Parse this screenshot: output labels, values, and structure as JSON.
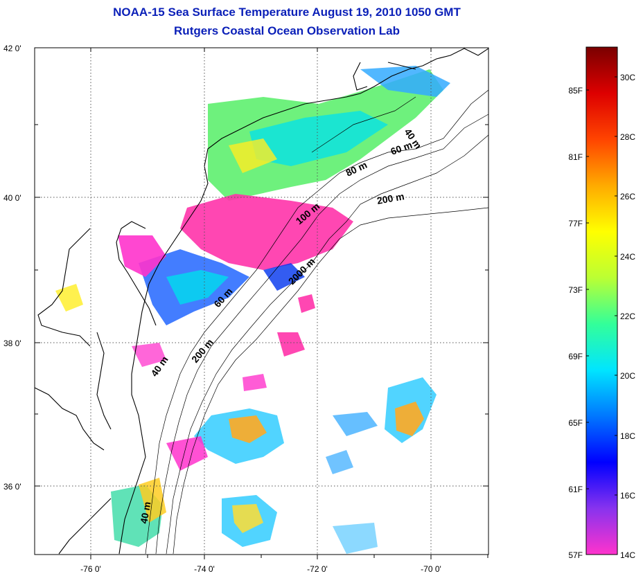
{
  "title": {
    "line1": "NOAA-15 Sea Surface Temperature August 19, 2010 1050 GMT",
    "line2": "Rutgers Coastal Ocean Observation Lab"
  },
  "map": {
    "lat_labels": [
      "42 0'",
      "40 0'",
      "38 0'",
      "36 0'"
    ],
    "lon_labels": [
      "-76 0'",
      "-74 0'",
      "-72 0'",
      "-70 0'"
    ],
    "lat_values": [
      42,
      40,
      38,
      36
    ],
    "lon_values": [
      -76,
      -74,
      -72,
      -70
    ],
    "extent": {
      "lon_min": -77,
      "lon_max": -69,
      "lat_min": 35,
      "lat_max": 42
    },
    "grid": "dotted",
    "contour_labels": [
      "40 m",
      "60 m",
      "80 m",
      "200 m",
      "100 m",
      "2000 m",
      "60 m",
      "200 m",
      "40 m",
      "40 m"
    ]
  },
  "colorbar": {
    "fahrenheit_labels": [
      "85F",
      "81F",
      "77F",
      "73F",
      "69F",
      "65F",
      "61F",
      "57F"
    ],
    "celsius_labels": [
      "30C",
      "28C",
      "26C",
      "24C",
      "22C",
      "20C",
      "18C",
      "16C",
      "14C"
    ],
    "gradient_colors": [
      "#ff33cc",
      "#8833ee",
      "#0000ff",
      "#0077ff",
      "#00e5ff",
      "#33ff99",
      "#bbff33",
      "#ffff00",
      "#ffaa00",
      "#ff4400",
      "#dd0000",
      "#7a0000"
    ]
  }
}
